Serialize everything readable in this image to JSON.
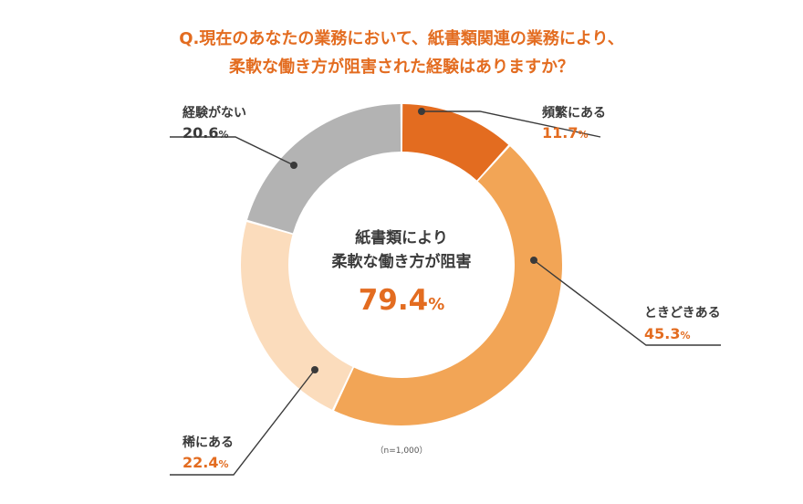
{
  "title_lines": [
    "Q.現在のあなたの業務において、紙書類関連の業務により、",
    "柔軟な働き方が阻害された経験はありますか？"
  ],
  "center": {
    "lines": [
      "紙書類により",
      "柔軟な働き方が阻害"
    ],
    "value": "79.4",
    "unit": "%"
  },
  "note": "（n=1,000）",
  "colors": {
    "title": "#e36c20",
    "text": "#3a3a3a",
    "leader": "#3a3a3a"
  },
  "chart_data": {
    "type": "pie",
    "donut": true,
    "start": "top",
    "direction": "clockwise",
    "unit": "%",
    "slices": [
      {
        "label": "頻繁にある",
        "value": 11.7,
        "color": "#e36c20",
        "value_color": "#e36c20"
      },
      {
        "label": "ときどきある",
        "value": 45.3,
        "color": "#f2a556",
        "value_color": "#e36c20"
      },
      {
        "label": "稀にある",
        "value": 22.4,
        "color": "#fbdcbc",
        "value_color": "#e36c20"
      },
      {
        "label": "経験がない",
        "value": 20.6,
        "color": "#b3b3b3",
        "value_color": "#3a3a3a"
      }
    ]
  }
}
